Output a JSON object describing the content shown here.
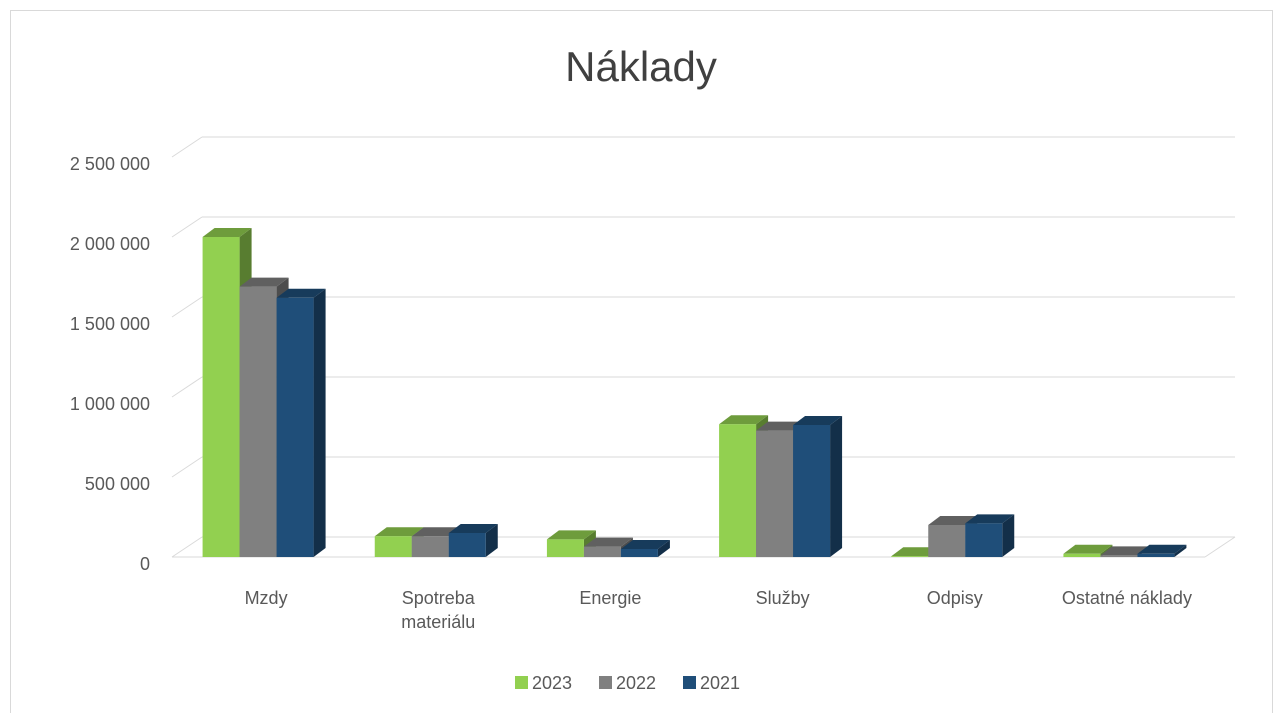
{
  "chart_data": {
    "type": "bar3d",
    "title": "Náklady",
    "categories": [
      "Mzdy",
      "Spotreba materiálu",
      "Energie",
      "Služby",
      "Odpisy",
      "Ostatné náklady"
    ],
    "series": [
      {
        "name": "2023",
        "color": "#92d050",
        "values": [
          2000000,
          130000,
          110000,
          830000,
          5000,
          20000
        ]
      },
      {
        "name": "2022",
        "color": "#808080",
        "values": [
          1690000,
          130000,
          65000,
          790000,
          200000,
          10000
        ]
      },
      {
        "name": "2021",
        "color": "#1f4e79",
        "values": [
          1620000,
          150000,
          50000,
          825000,
          210000,
          20000
        ]
      }
    ],
    "ylim": [
      0,
      2500000
    ],
    "yticks": [
      0,
      {
        "value": 500000,
        "label": "500 000"
      },
      {
        "value": 1000000,
        "label": "1 000 000"
      },
      {
        "value": 1500000,
        "label": "1 500 000"
      },
      {
        "value": 2000000,
        "label": "2 000 000"
      },
      {
        "value": 2500000,
        "label": "2 500 000"
      }
    ],
    "grid": true,
    "legend": "bottom"
  }
}
